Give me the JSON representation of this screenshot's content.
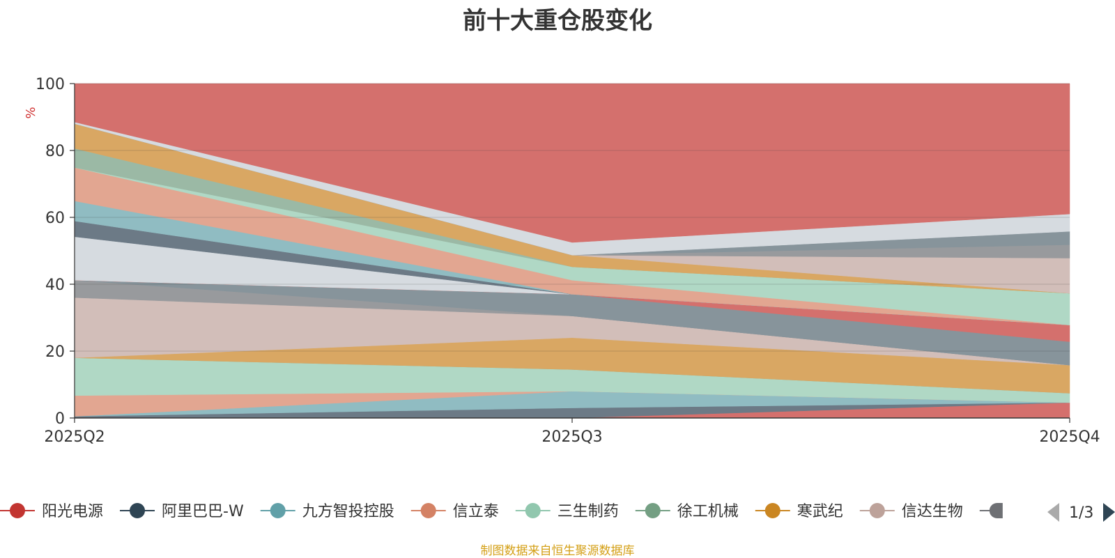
{
  "chart_data": {
    "type": "area",
    "stacked": true,
    "title": "前十大重仓股变化",
    "ylabel": "%",
    "ylim": [
      0,
      100
    ],
    "yticks": [
      "0",
      "20",
      "40",
      "60",
      "80",
      "100"
    ],
    "categories": [
      "2025Q2",
      "2025Q3",
      "2025Q4"
    ],
    "grid": true,
    "legend_position": "bottom",
    "legend_page": "1/3",
    "series": [
      {
        "name": "阳光电源",
        "color": "#c23531",
        "fill": "#d4706d",
        "values": [
          0.0,
          0.0,
          4.6
        ]
      },
      {
        "name": "阿里巴巴-W",
        "color": "#2f4554",
        "fill": "#6c7a86",
        "values": [
          0.5,
          3.0,
          0.0
        ]
      },
      {
        "name": "九方智投控股",
        "color": "#61a0a8",
        "fill": "#90bcc2",
        "values": [
          0.0,
          5.0,
          0.0
        ]
      },
      {
        "name": "信立泰",
        "color": "#d48265",
        "fill": "#e2a691",
        "values": [
          6.2,
          0.0,
          0.0
        ]
      },
      {
        "name": "三生制药",
        "color": "#91c7ae",
        "fill": "#b0d8c5",
        "values": [
          11.3,
          6.5,
          2.8
        ]
      },
      {
        "name": "徐工机械",
        "color": "#749f83",
        "fill": "#9bb9a5",
        "values": [
          0.0,
          0.0,
          0.0
        ]
      },
      {
        "name": "寒武纪",
        "color": "#ca8622",
        "fill": "#d9a763",
        "values": [
          0.0,
          9.5,
          8.4
        ]
      },
      {
        "name": "信达生物",
        "color": "#bda29a",
        "fill": "#d2beb9",
        "values": [
          18.0,
          6.5,
          0.0
        ]
      },
      {
        "name": "",
        "color": "#6e7074",
        "fill": "#989a9d",
        "values": [
          5.2,
          0.0,
          0.0
        ]
      },
      {
        "name": "",
        "color": "#546570",
        "fill": "#87949b",
        "values": [
          0.0,
          6.5,
          7.0
        ]
      },
      {
        "name": "",
        "color": "#c23531",
        "fill": "#d4706d",
        "values": [
          0.0,
          0.0,
          5.0
        ]
      },
      {
        "name": "",
        "color": "#c4ccd3",
        "fill": "#d6dbe0",
        "values": [
          13.0,
          0.0,
          0.0
        ]
      },
      {
        "name": "",
        "color": "#2f4554",
        "fill": "#6c7a86",
        "values": [
          4.7,
          0.0,
          0.0
        ]
      },
      {
        "name": "",
        "color": "#61a0a8",
        "fill": "#90bcc2",
        "values": [
          6.0,
          0.0,
          0.0
        ]
      },
      {
        "name": "",
        "color": "#d48265",
        "fill": "#e2a691",
        "values": [
          10.0,
          4.2,
          0.0
        ]
      },
      {
        "name": "",
        "color": "#91c7ae",
        "fill": "#b0d8c5",
        "values": [
          0.0,
          4.0,
          9.5
        ]
      },
      {
        "name": "",
        "color": "#749f83",
        "fill": "#9bb9a5",
        "values": [
          5.7,
          0.0,
          0.0
        ]
      },
      {
        "name": "",
        "color": "#ca8622",
        "fill": "#d9a763",
        "values": [
          7.4,
          3.5,
          0.0
        ]
      },
      {
        "name": "",
        "color": "#bda29a",
        "fill": "#d2beb9",
        "values": [
          0.0,
          0.0,
          10.5
        ]
      },
      {
        "name": "",
        "color": "#6e7074",
        "fill": "#989a9d",
        "values": [
          0.0,
          0.0,
          4.0
        ]
      },
      {
        "name": "",
        "color": "#546570",
        "fill": "#87949b",
        "values": [
          0.0,
          0.0,
          4.0
        ]
      },
      {
        "name": "",
        "color": "#c4ccd3",
        "fill": "#d6dbe0",
        "values": [
          0.5,
          3.8,
          5.2
        ]
      },
      {
        "name": "",
        "color": "#c23531",
        "fill": "#d4706d",
        "values": [
          11.5,
          47.5,
          39.0
        ]
      }
    ]
  },
  "footer_note": "制图数据来自恒生聚源数据库"
}
